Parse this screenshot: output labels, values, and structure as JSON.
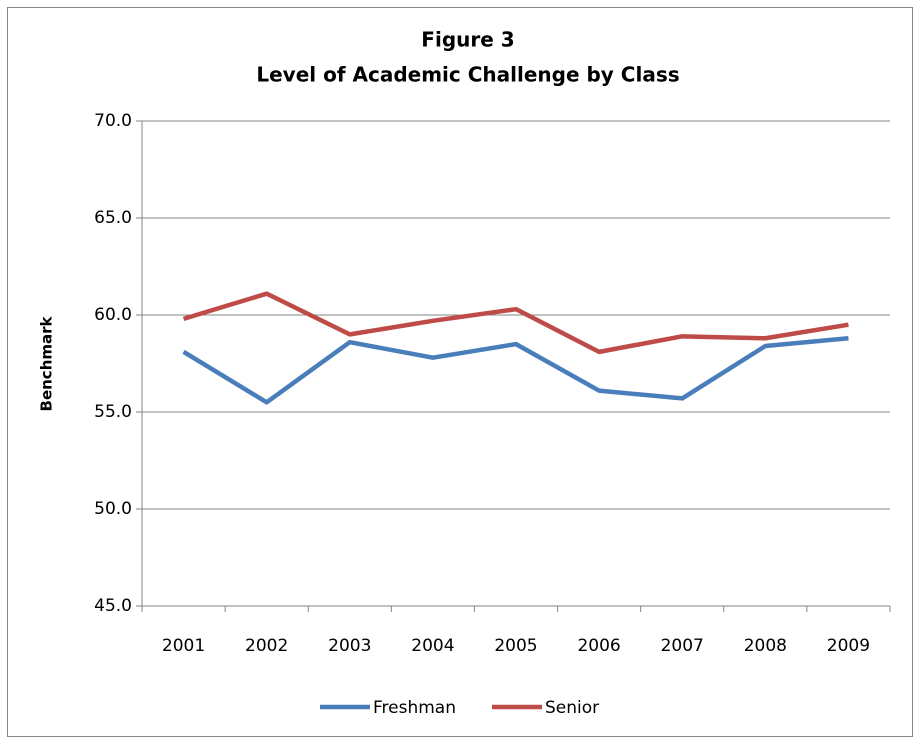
{
  "chart_data": {
    "type": "line",
    "title": "Figure 3",
    "subtitle": "Level of Academic Challenge by Class",
    "y_label": "Benchmark",
    "categories": [
      "2001",
      "2002",
      "2003",
      "2004",
      "2005",
      "2006",
      "2007",
      "2008",
      "2009"
    ],
    "series": [
      {
        "name": "Freshman",
        "color": "#4a7ebb",
        "values": [
          58.1,
          55.5,
          58.6,
          57.8,
          58.5,
          56.1,
          55.7,
          58.4,
          58.8
        ]
      },
      {
        "name": "Senior",
        "color": "#be4b48",
        "values": [
          59.8,
          61.1,
          59.0,
          59.7,
          60.3,
          58.1,
          58.9,
          58.8,
          59.5
        ]
      }
    ],
    "ylim": [
      45,
      70
    ],
    "yticks": [
      {
        "value": 45,
        "label": "45.0"
      },
      {
        "value": 50,
        "label": "50.0"
      },
      {
        "value": 55,
        "label": "55.0"
      },
      {
        "value": 60,
        "label": "60.0"
      },
      {
        "value": 65,
        "label": "65.0"
      },
      {
        "value": 70,
        "label": "70.0"
      }
    ],
    "grid": true,
    "legend": "bottom"
  }
}
